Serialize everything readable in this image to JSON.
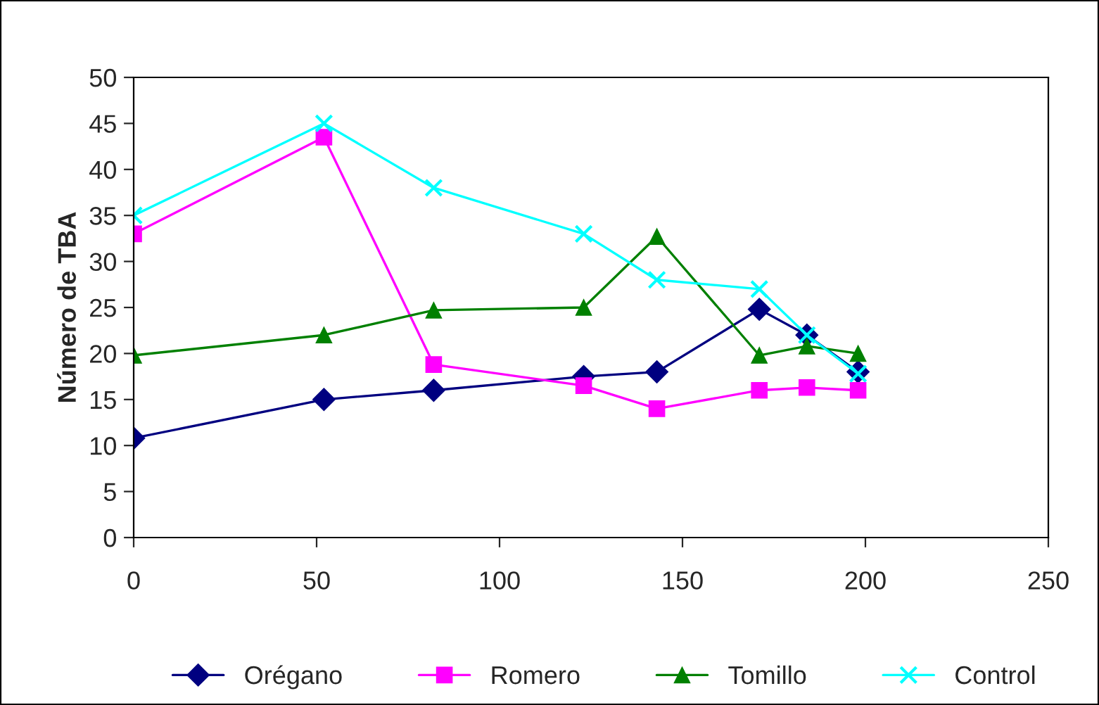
{
  "chart_data": {
    "type": "line",
    "ylabel": "Número de TBA",
    "x": [
      0,
      52,
      82,
      123,
      143,
      171,
      184,
      198
    ],
    "series": [
      {
        "name": "Orégano",
        "color": "#000080",
        "marker": "diamond",
        "values": [
          10.8,
          15,
          16,
          17.5,
          18,
          24.8,
          22,
          18
        ]
      },
      {
        "name": "Romero",
        "color": "#ff00ff",
        "marker": "square",
        "values": [
          33,
          43.5,
          18.8,
          16.5,
          14,
          16,
          16.3,
          16
        ]
      },
      {
        "name": "Tomillo",
        "color": "#008000",
        "marker": "triangle",
        "values": [
          19.8,
          22,
          24.7,
          25,
          32.7,
          19.8,
          20.8,
          20
        ]
      },
      {
        "name": "Control",
        "color": "#00ffff",
        "marker": "cross",
        "values": [
          35,
          45,
          38,
          33,
          28,
          27,
          22,
          17.8
        ]
      }
    ],
    "xlim": [
      0,
      250
    ],
    "xticks": [
      0,
      50,
      100,
      150,
      200,
      250
    ],
    "ylim": [
      0,
      50
    ],
    "yticks": [
      0,
      5,
      10,
      15,
      20,
      25,
      30,
      35,
      40,
      45,
      50
    ],
    "grid": false,
    "legend": "bottom"
  }
}
